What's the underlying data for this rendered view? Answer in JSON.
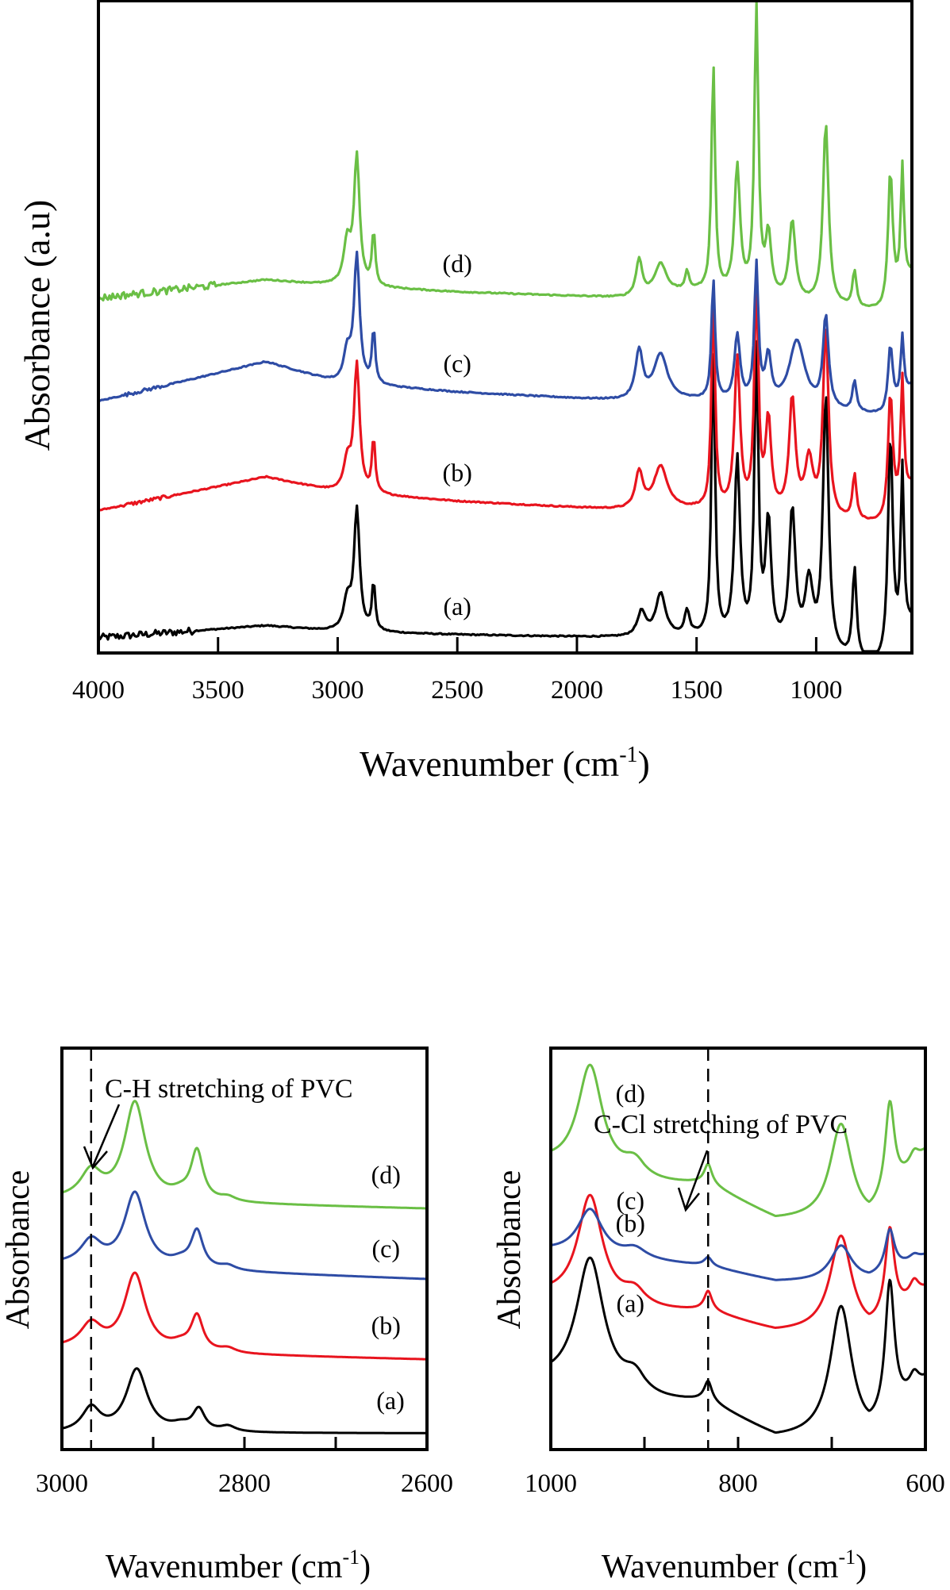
{
  "chart_data": [
    {
      "id": "full",
      "type": "line",
      "title": "",
      "xlabel": "Wavenumber (cm",
      "xlabel_sup": "-1",
      "xlabel_tail": ")",
      "ylabel": "Absorbance (a.u)",
      "xlim": [
        4000,
        600
      ],
      "x_reversed": true,
      "xticks": [
        4000,
        3500,
        3000,
        2500,
        2000,
        1500,
        1000
      ],
      "yticks": [],
      "grid": false,
      "legend": "inline-labels",
      "series": [
        {
          "name": "(a)",
          "color": "#000000",
          "offset": 0.0,
          "label_x": 2500,
          "label_dy": 0.06,
          "noise_region": [
            4000,
            3600
          ],
          "noise_amp": 0.012,
          "baseline": [
            [
              4000,
              0.0
            ],
            [
              3300,
              0.04
            ],
            [
              3000,
              0.02
            ],
            [
              2500,
              0.01
            ],
            [
              1800,
              0.0
            ],
            [
              1500,
              0.0
            ],
            [
              700,
              -0.1
            ],
            [
              600,
              0.05
            ]
          ],
          "peaks": [
            [
              2960,
              0.1,
              18
            ],
            [
              2920,
              0.4,
              14
            ],
            [
              2850,
              0.16,
              8
            ],
            [
              1730,
              0.08,
              20
            ],
            [
              1650,
              0.14,
              25
            ],
            [
              1540,
              0.08,
              12
            ],
            [
              1430,
              0.95,
              9
            ],
            [
              1330,
              0.6,
              14
            ],
            [
              1250,
              0.95,
              10
            ],
            [
              1200,
              0.4,
              14
            ],
            [
              1100,
              0.45,
              16
            ],
            [
              1030,
              0.22,
              20
            ],
            [
              960,
              0.85,
              14
            ],
            [
              840,
              0.3,
              10
            ],
            [
              690,
              0.75,
              12
            ],
            [
              640,
              0.55,
              8
            ]
          ]
        },
        {
          "name": "(b)",
          "color": "#e8141e",
          "offset": 0.42,
          "label_x": 2500,
          "label_dy": 0.06,
          "noise_region": [
            3900,
            3700
          ],
          "noise_amp": 0.006,
          "baseline": [
            [
              4000,
              0.0
            ],
            [
              3300,
              0.11
            ],
            [
              3000,
              0.06
            ],
            [
              2500,
              0.03
            ],
            [
              1800,
              0.0
            ],
            [
              1500,
              0.0
            ],
            [
              700,
              -0.05
            ],
            [
              600,
              0.08
            ]
          ],
          "peaks": [
            [
              2960,
              0.1,
              18
            ],
            [
              2920,
              0.42,
              14
            ],
            [
              2850,
              0.18,
              8
            ],
            [
              1740,
              0.12,
              18
            ],
            [
              1650,
              0.14,
              35
            ],
            [
              1430,
              0.7,
              9
            ],
            [
              1330,
              0.5,
              14
            ],
            [
              1250,
              0.75,
              10
            ],
            [
              1200,
              0.3,
              14
            ],
            [
              1100,
              0.38,
              16
            ],
            [
              1030,
              0.18,
              20
            ],
            [
              960,
              0.62,
              14
            ],
            [
              840,
              0.15,
              10
            ],
            [
              690,
              0.42,
              12
            ],
            [
              640,
              0.4,
              8
            ]
          ]
        },
        {
          "name": "(c)",
          "color": "#2e4ca5",
          "offset": 0.78,
          "label_x": 2500,
          "label_dy": 0.06,
          "noise_region": [
            3900,
            3700
          ],
          "noise_amp": 0.006,
          "baseline": [
            [
              4000,
              0.0
            ],
            [
              3300,
              0.13
            ],
            [
              3000,
              0.06
            ],
            [
              2500,
              0.03
            ],
            [
              1800,
              0.0
            ],
            [
              1500,
              0.0
            ],
            [
              700,
              -0.05
            ],
            [
              600,
              0.05
            ]
          ],
          "peaks": [
            [
              2960,
              0.1,
              18
            ],
            [
              2920,
              0.42,
              14
            ],
            [
              2850,
              0.18,
              8
            ],
            [
              1740,
              0.16,
              18
            ],
            [
              1650,
              0.15,
              35
            ],
            [
              1430,
              0.4,
              9
            ],
            [
              1330,
              0.22,
              14
            ],
            [
              1250,
              0.45,
              10
            ],
            [
              1200,
              0.15,
              14
            ],
            [
              1080,
              0.22,
              40
            ],
            [
              960,
              0.3,
              14
            ],
            [
              840,
              0.1,
              10
            ],
            [
              690,
              0.22,
              12
            ],
            [
              640,
              0.2,
              8
            ]
          ]
        },
        {
          "name": "(d)",
          "color": "#6abf45",
          "offset": 1.12,
          "label_x": 2500,
          "label_dy": 0.06,
          "noise_region": [
            4000,
            3500
          ],
          "noise_amp": 0.012,
          "baseline": [
            [
              4000,
              0.0
            ],
            [
              3300,
              0.06
            ],
            [
              3000,
              0.04
            ],
            [
              2500,
              0.02
            ],
            [
              1800,
              0.0
            ],
            [
              1500,
              0.02
            ],
            [
              700,
              -0.05
            ],
            [
              600,
              0.08
            ]
          ],
          "peaks": [
            [
              2960,
              0.14,
              18
            ],
            [
              2920,
              0.42,
              14
            ],
            [
              2850,
              0.18,
              8
            ],
            [
              1740,
              0.12,
              15
            ],
            [
              1650,
              0.1,
              30
            ],
            [
              1540,
              0.06,
              10
            ],
            [
              1430,
              0.75,
              9
            ],
            [
              1330,
              0.42,
              14
            ],
            [
              1250,
              0.95,
              10
            ],
            [
              1200,
              0.2,
              14
            ],
            [
              1100,
              0.26,
              16
            ],
            [
              960,
              0.6,
              14
            ],
            [
              840,
              0.12,
              10
            ],
            [
              690,
              0.45,
              12
            ],
            [
              640,
              0.4,
              8
            ]
          ]
        }
      ],
      "ylim": [
        -0.05,
        2.1
      ]
    },
    {
      "id": "ch",
      "type": "line",
      "title": "",
      "xlabel": "Wavenumber (cm",
      "xlabel_sup": "-1",
      "xlabel_tail": ")",
      "ylabel": "Absorbance",
      "xlim": [
        3000,
        2600
      ],
      "x_reversed": true,
      "xticks": [
        3000,
        2900,
        2800,
        2700,
        2600
      ],
      "xtick_labels": [
        "3000",
        "",
        "2800",
        "",
        "2600"
      ],
      "yticks": [],
      "grid": false,
      "annotation": {
        "text": "C-H stretching of PVC",
        "line_x": 2968
      },
      "series": [
        {
          "name": "(a)",
          "color": "#000000",
          "offset": 0.0,
          "label_x": 2640,
          "label_dy": 0.12,
          "baseline": [
            [
              3000,
              0.0
            ],
            [
              2800,
              0.0
            ],
            [
              2600,
              0.0
            ]
          ],
          "peaks": [
            [
              2968,
              0.22,
              12
            ],
            [
              2918,
              0.58,
              14
            ],
            [
              2870,
              0.05,
              12
            ],
            [
              2850,
              0.2,
              8
            ],
            [
              2818,
              0.05,
              10
            ]
          ]
        },
        {
          "name": "(b)",
          "color": "#e8141e",
          "offset": 0.78,
          "label_x": 2645,
          "label_dy": 0.12,
          "baseline": [
            [
              3000,
              0.0
            ],
            [
              2800,
              -0.06
            ],
            [
              2600,
              -0.1
            ]
          ],
          "peaks": [
            [
              2968,
              0.22,
              14
            ],
            [
              2920,
              0.7,
              14
            ],
            [
              2870,
              0.05,
              12
            ],
            [
              2852,
              0.32,
              8
            ],
            [
              2818,
              0.04,
              10
            ]
          ]
        },
        {
          "name": "(c)",
          "color": "#2e4ca5",
          "offset": 1.55,
          "label_x": 2645,
          "label_dy": 0.1,
          "baseline": [
            [
              3000,
              0.0
            ],
            [
              2800,
              -0.07
            ],
            [
              2600,
              -0.13
            ]
          ],
          "peaks": [
            [
              2968,
              0.22,
              14
            ],
            [
              2920,
              0.68,
              14
            ],
            [
              2870,
              0.05,
              12
            ],
            [
              2852,
              0.34,
              8
            ],
            [
              2818,
              0.04,
              10
            ]
          ]
        },
        {
          "name": "(d)",
          "color": "#6abf45",
          "offset": 2.15,
          "label_x": 2645,
          "label_dy": 0.12,
          "baseline": [
            [
              3000,
              0.0
            ],
            [
              2800,
              -0.04
            ],
            [
              2600,
              -0.08
            ]
          ],
          "peaks": [
            [
              2968,
              0.25,
              14
            ],
            [
              2920,
              0.9,
              14
            ],
            [
              2870,
              0.05,
              12
            ],
            [
              2852,
              0.45,
              8
            ],
            [
              2818,
              0.04,
              10
            ]
          ]
        }
      ],
      "ylim": [
        -0.15,
        3.55
      ]
    },
    {
      "id": "ccl",
      "type": "line",
      "title": "",
      "xlabel": "Wavenumber (cm",
      "xlabel_sup": "-1",
      "xlabel_tail": ")",
      "ylabel": "Absorbance",
      "xlim": [
        1000,
        600
      ],
      "x_reversed": true,
      "xticks": [
        1000,
        900,
        800,
        700,
        600
      ],
      "xtick_labels": [
        "1000",
        "",
        "800",
        "",
        "600"
      ],
      "yticks": [],
      "grid": false,
      "annotation": {
        "text": "C-Cl stretching of PVC",
        "line_x": 832
      },
      "series": [
        {
          "name": "(a)",
          "color": "#000000",
          "offset": 0.0,
          "label_x": 915,
          "label_dy": 0.25,
          "baseline": [
            [
              1000,
              0.55
            ],
            [
              900,
              0.35
            ],
            [
              832,
              0.35
            ],
            [
              760,
              0.0
            ],
            [
              700,
              0.0
            ],
            [
              660,
              -0.05
            ],
            [
              600,
              0.55
            ]
          ],
          "peaks": [
            [
              958,
              1.3,
              18
            ],
            [
              910,
              0.2,
              15
            ],
            [
              832,
              0.18,
              5
            ],
            [
              690,
              1.3,
              14
            ],
            [
              638,
              1.3,
              6
            ],
            [
              612,
              0.15,
              6
            ]
          ]
        },
        {
          "name": "(b)",
          "color": "#e8141e",
          "offset": 1.05,
          "label_x": 915,
          "label_dy": 0.25,
          "baseline": [
            [
              1000,
              0.35
            ],
            [
              900,
              0.2
            ],
            [
              832,
              0.2
            ],
            [
              760,
              0.0
            ],
            [
              700,
              0.0
            ],
            [
              660,
              -0.05
            ],
            [
              600,
              0.4
            ]
          ],
          "peaks": [
            [
              958,
              1.05,
              16
            ],
            [
              910,
              0.16,
              15
            ],
            [
              832,
              0.18,
              5
            ],
            [
              690,
              0.95,
              14
            ],
            [
              638,
              0.85,
              6
            ],
            [
              612,
              0.15,
              6
            ]
          ]
        },
        {
          "name": "(c)",
          "color": "#2e4ca5",
          "offset": 1.55,
          "label_x": 915,
          "label_dy": 0.18,
          "baseline": [
            [
              1000,
              0.3
            ],
            [
              900,
              0.2
            ],
            [
              832,
              0.15
            ],
            [
              760,
              0.0
            ],
            [
              700,
              0.0
            ],
            [
              660,
              0.0
            ],
            [
              600,
              0.25
            ]
          ],
          "peaks": [
            [
              958,
              0.45,
              16
            ],
            [
              910,
              0.1,
              15
            ],
            [
              832,
              0.08,
              5
            ],
            [
              690,
              0.35,
              14
            ],
            [
              638,
              0.4,
              6
            ],
            [
              612,
              0.05,
              6
            ]
          ]
        },
        {
          "name": "(d)",
          "color": "#6abf45",
          "offset": 2.15,
          "label_x": 915,
          "label_dy": 0.25,
          "baseline": [
            [
              1000,
              0.55
            ],
            [
              900,
              0.35
            ],
            [
              832,
              0.35
            ],
            [
              760,
              0.0
            ],
            [
              700,
              0.0
            ],
            [
              660,
              -0.05
            ],
            [
              600,
              0.65
            ]
          ],
          "peaks": [
            [
              958,
              1.05,
              16
            ],
            [
              910,
              0.18,
              15
            ],
            [
              832,
              0.18,
              5
            ],
            [
              690,
              0.95,
              14
            ],
            [
              638,
              0.9,
              6
            ],
            [
              612,
              0.12,
              6
            ]
          ]
        }
      ],
      "ylim": [
        -0.1,
        3.85
      ]
    }
  ]
}
